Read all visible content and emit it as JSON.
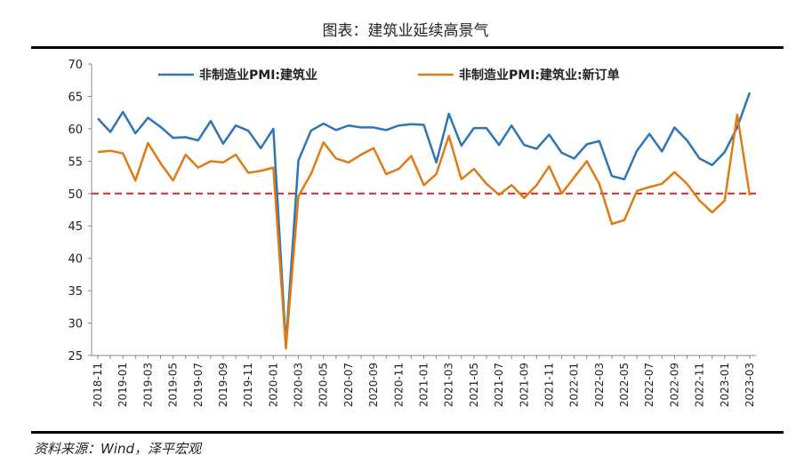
{
  "chart_data": {
    "type": "line",
    "title": "图表：建筑业延续高景气",
    "source": "资料来源：Wind，泽平宏观",
    "categories": [
      "2018-11",
      null,
      "2019-01",
      null,
      "2019-03",
      null,
      "2019-05",
      null,
      "2019-07",
      null,
      "2019-09",
      null,
      "2019-11",
      null,
      "2020-01",
      null,
      "2020-03",
      null,
      "2020-05",
      null,
      "2020-07",
      null,
      "2020-09",
      null,
      "2020-11",
      null,
      "2021-01",
      null,
      "2021-03",
      null,
      "2021-05",
      null,
      "2021-07",
      null,
      "2021-09",
      null,
      "2021-11",
      null,
      "2022-01",
      null,
      "2022-03",
      null,
      "2022-05",
      null,
      "2022-07",
      null,
      "2022-09",
      null,
      "2022-11",
      null,
      "2023-01",
      null,
      "2023-03"
    ],
    "series": [
      {
        "name": "非制造业PMI:建筑业",
        "color": "#2e75b6",
        "values": [
          61.6,
          59.5,
          62.6,
          59.3,
          61.7,
          60.3,
          58.6,
          58.7,
          58.2,
          61.2,
          57.7,
          60.5,
          59.7,
          57.0,
          60.0,
          26.6,
          55.1,
          59.7,
          60.8,
          59.8,
          60.5,
          60.2,
          60.2,
          59.8,
          60.5,
          60.7,
          60.6,
          54.8,
          62.3,
          57.4,
          60.1,
          60.1,
          57.5,
          60.5,
          57.5,
          56.9,
          59.1,
          56.3,
          55.4,
          57.6,
          58.1,
          52.7,
          52.2,
          56.6,
          59.2,
          56.5,
          60.2,
          58.2,
          55.4,
          54.4,
          56.4,
          60.2,
          65.6
        ]
      },
      {
        "name": "非制造业PMI:建筑业:新订单",
        "color": "#e07b14",
        "values": [
          56.4,
          56.6,
          56.2,
          52.0,
          57.8,
          54.7,
          52.0,
          56.0,
          54.0,
          55.0,
          54.8,
          56.0,
          53.2,
          53.5,
          54.0,
          26.1,
          49.6,
          53.0,
          57.9,
          55.4,
          54.8,
          56.0,
          57.0,
          53.0,
          53.8,
          55.8,
          51.3,
          53.0,
          58.9,
          52.2,
          53.8,
          51.5,
          49.8,
          51.3,
          49.3,
          51.3,
          54.2,
          50.0,
          52.5,
          55.0,
          51.5,
          45.3,
          45.9,
          50.4,
          51.0,
          51.5,
          53.3,
          51.5,
          48.9,
          47.1,
          48.9,
          62.2,
          49.7
        ]
      }
    ],
    "reference_line": {
      "value": 50,
      "color": "#d62728"
    },
    "ylim": [
      25,
      70
    ],
    "yticks": [
      25,
      30,
      35,
      40,
      45,
      50,
      55,
      60,
      65,
      70
    ],
    "legend": "top"
  }
}
